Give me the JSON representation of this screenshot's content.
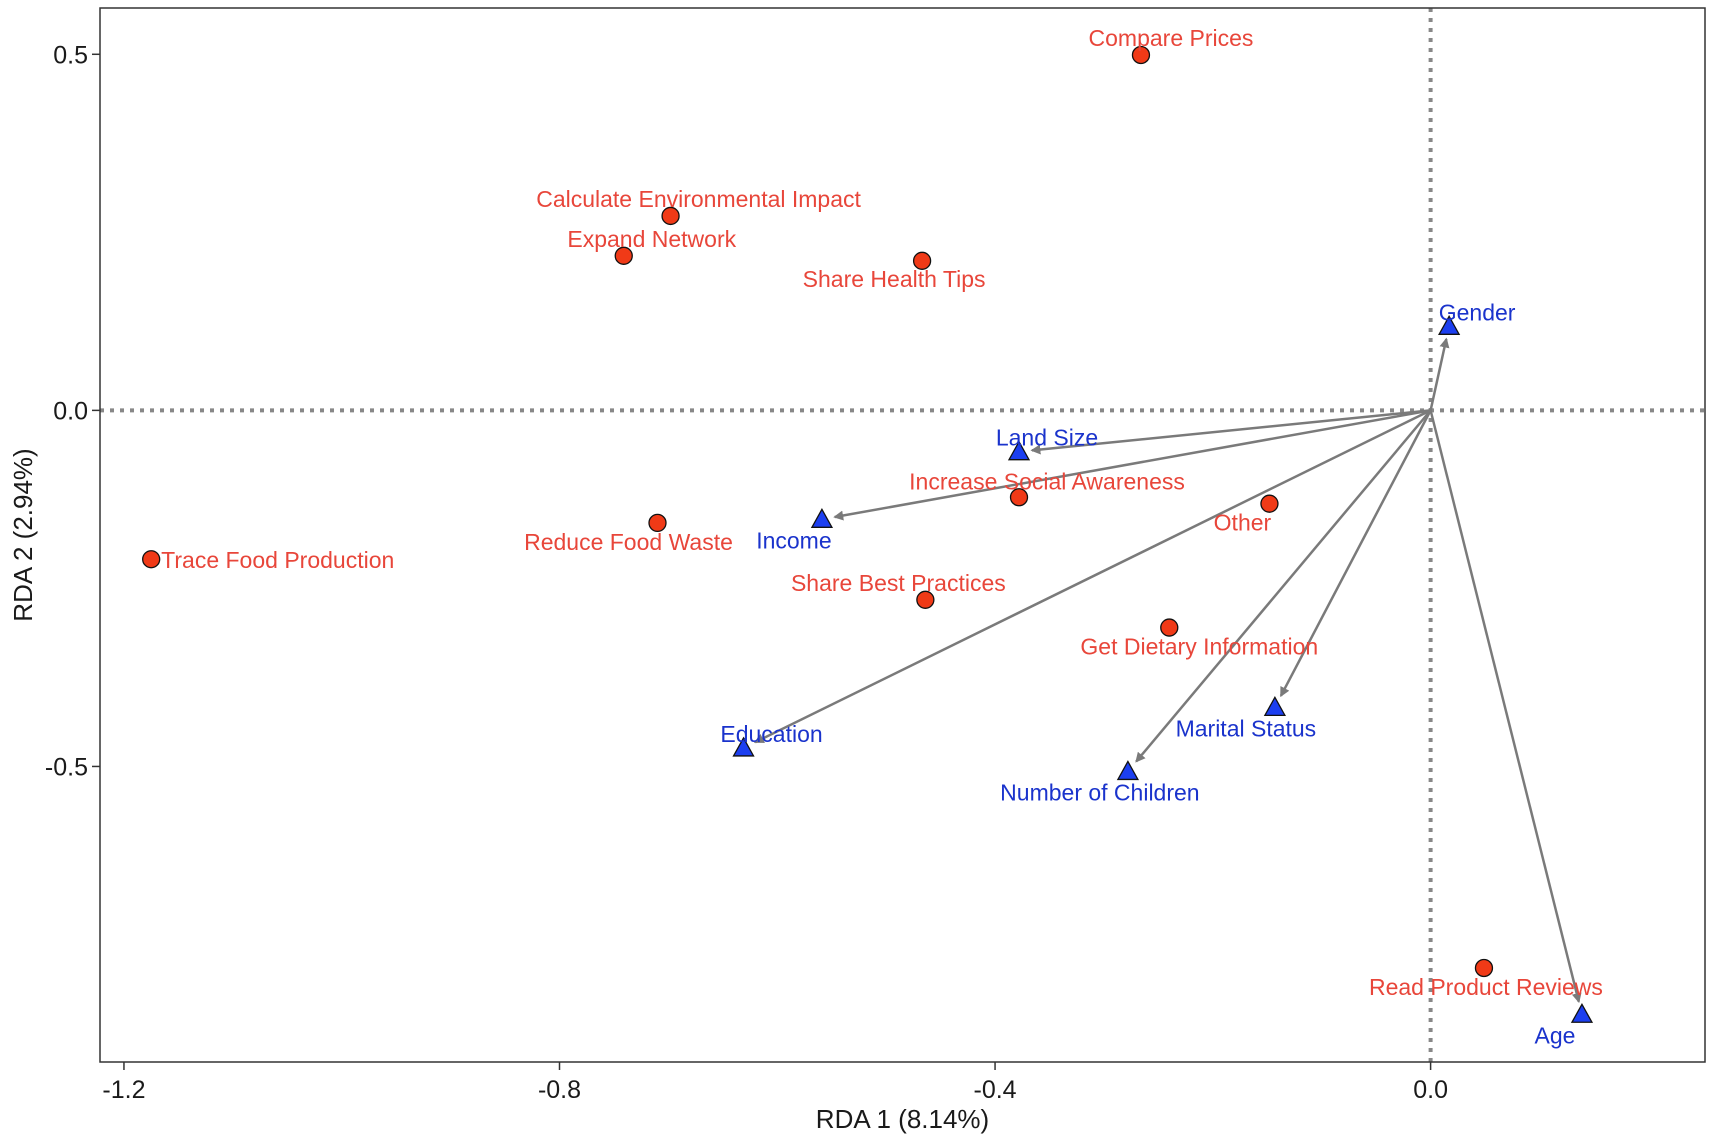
{
  "chart_data": {
    "type": "scatter",
    "subtype": "rda-biplot",
    "title": "",
    "xlabel": "RDA 1 (8.14%)",
    "ylabel": "RDA 2 (2.94%)",
    "xlim": [
      -1.222,
      0.252
    ],
    "ylim": [
      -0.915,
      0.565
    ],
    "xticks": [
      -1.2,
      -0.8,
      -0.4,
      0.0
    ],
    "xtick_labels": [
      "-1.2",
      "-0.8",
      "-0.4",
      "0.0"
    ],
    "yticks": [
      0.5,
      0.0,
      -0.5
    ],
    "ytick_labels": [
      "0.5",
      "0.0",
      "-0.5"
    ],
    "grid": false,
    "reference_lines": {
      "x": 0.0,
      "y": 0.0,
      "style": "dotted"
    },
    "colors": {
      "response_point": "#f03a17",
      "response_label": "#e8463a",
      "explanatory_point": "#1c3ff0",
      "explanatory_label": "#1a33cc",
      "arrow": "#7a7a7a",
      "axis_line": "#333333"
    },
    "response_points": [
      {
        "label": "Compare Prices",
        "x": -0.266,
        "y": 0.499
      },
      {
        "label": "Calculate Environmental Impact",
        "x": -0.698,
        "y": 0.273
      },
      {
        "label": "Expand Network",
        "x": -0.741,
        "y": 0.217
      },
      {
        "label": "Share Health Tips",
        "x": -0.467,
        "y": 0.21
      },
      {
        "label": "Increase Social Awareness",
        "x": -0.378,
        "y": -0.122
      },
      {
        "label": "Other",
        "x": -0.148,
        "y": -0.131
      },
      {
        "label": "Reduce Food Waste",
        "x": -0.71,
        "y": -0.158
      },
      {
        "label": "Trace Food Production",
        "x": -1.175,
        "y": -0.209
      },
      {
        "label": "Share Best Practices",
        "x": -0.464,
        "y": -0.266
      },
      {
        "label": "Get Dietary Information",
        "x": -0.24,
        "y": -0.305
      },
      {
        "label": "Read Product Reviews",
        "x": 0.049,
        "y": -0.783
      }
    ],
    "explanatory_vectors": [
      {
        "label": "Gender",
        "x": 0.017,
        "y": 0.118
      },
      {
        "label": "Land Size",
        "x": -0.378,
        "y": -0.058
      },
      {
        "label": "Income",
        "x": -0.559,
        "y": -0.153
      },
      {
        "label": "Education",
        "x": -0.631,
        "y": -0.474
      },
      {
        "label": "Marital Status",
        "x": -0.143,
        "y": -0.417
      },
      {
        "label": "Number of Children",
        "x": -0.278,
        "y": -0.507
      },
      {
        "label": "Age",
        "x": 0.139,
        "y": -0.848
      }
    ]
  }
}
